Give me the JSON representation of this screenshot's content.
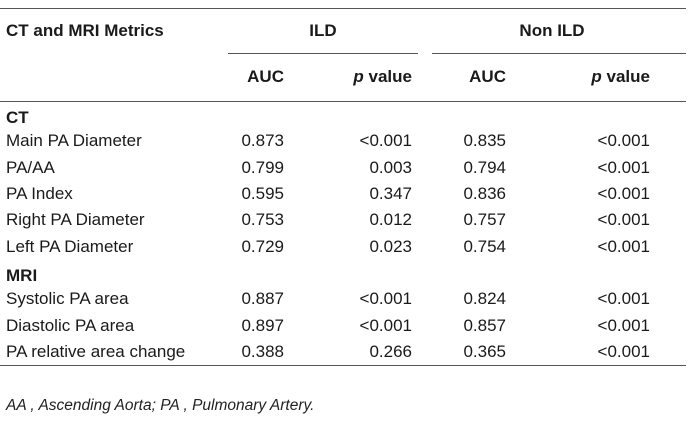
{
  "table": {
    "corner_header": "CT and MRI Metrics",
    "groups": [
      "ILD",
      "Non ILD"
    ],
    "subheaders": {
      "auc": "AUC",
      "p_italic": "p",
      "p_rest": " value"
    },
    "sections": [
      {
        "title": "CT",
        "rows": [
          {
            "name": "Main PA Diameter",
            "ild_auc": "0.873",
            "ild_p": "<0.001",
            "non_auc": "0.835",
            "non_p": "<0.001"
          },
          {
            "name": "PA/AA",
            "ild_auc": "0.799",
            "ild_p": "0.003",
            "non_auc": "0.794",
            "non_p": "<0.001"
          },
          {
            "name": "PA Index",
            "ild_auc": "0.595",
            "ild_p": "0.347",
            "non_auc": "0.836",
            "non_p": "<0.001"
          },
          {
            "name": "Right PA Diameter",
            "ild_auc": "0.753",
            "ild_p": "0.012",
            "non_auc": "0.757",
            "non_p": "<0.001"
          },
          {
            "name": "Left PA Diameter",
            "ild_auc": "0.729",
            "ild_p": "0.023",
            "non_auc": "0.754",
            "non_p": "<0.001"
          }
        ]
      },
      {
        "title": "MRI",
        "rows": [
          {
            "name": "Systolic PA area",
            "ild_auc": "0.887",
            "ild_p": "<0.001",
            "non_auc": "0.824",
            "non_p": "<0.001"
          },
          {
            "name": "Diastolic PA area",
            "ild_auc": "0.897",
            "ild_p": "<0.001",
            "non_auc": "0.857",
            "non_p": "<0.001"
          },
          {
            "name": "PA relative area change",
            "ild_auc": "0.388",
            "ild_p": "0.266",
            "non_auc": "0.365",
            "non_p": "<0.001"
          }
        ]
      }
    ]
  },
  "footnote": "AA , Ascending Aorta; PA , Pulmonary Artery."
}
